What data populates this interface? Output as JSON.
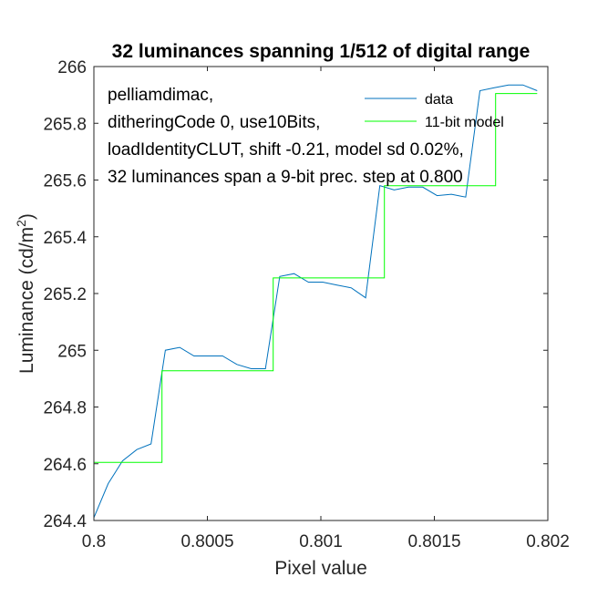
{
  "chart_data": {
    "type": "line",
    "title": "32 luminances spanning 1/512 of digital range",
    "xlabel": "Pixel value",
    "ylabel_main": "Luminance (cd/m",
    "ylabel_sup": "2",
    "ylabel_close": ")",
    "xlim": [
      0.8,
      0.802
    ],
    "ylim": [
      264.4,
      266
    ],
    "xticks": [
      0.8,
      0.8005,
      0.801,
      0.8015,
      0.802
    ],
    "xtick_labels": [
      "0.8",
      "0.8005",
      "0.801",
      "0.8015",
      "0.802"
    ],
    "yticks": [
      264.4,
      264.6,
      264.8,
      265,
      265.2,
      265.4,
      265.6,
      265.8,
      266
    ],
    "ytick_labels": [
      "264.4",
      "264.6",
      "264.8",
      "265",
      "265.2",
      "265.4",
      "265.6",
      "265.8",
      "266"
    ],
    "grid": false,
    "legend_position": "top-right",
    "annotation_lines": [
      "pelliamdimac,",
      "ditheringCode 0, use10Bits,",
      "loadIdentityCLUT, shift -0.21, model sd 0.02%,",
      "32 luminances span a 9-bit prec. step at 0.800"
    ],
    "series": [
      {
        "name": "data",
        "color": "#0072BD",
        "x": [
          0.8,
          0.800063,
          0.800126,
          0.800189,
          0.800252,
          0.800315,
          0.800378,
          0.800441,
          0.800504,
          0.800567,
          0.80063,
          0.800693,
          0.800756,
          0.800819,
          0.800882,
          0.800945,
          0.801008,
          0.801071,
          0.801134,
          0.801197,
          0.80126,
          0.801323,
          0.801386,
          0.801449,
          0.801512,
          0.801575,
          0.801638,
          0.801701,
          0.801764,
          0.801827,
          0.80189,
          0.801953
        ],
        "y": [
          264.41,
          264.53,
          264.61,
          264.65,
          264.67,
          265.0,
          265.01,
          264.98,
          264.98,
          264.98,
          264.95,
          264.935,
          264.935,
          265.26,
          265.27,
          265.24,
          265.24,
          265.23,
          265.22,
          265.185,
          265.58,
          265.565,
          265.575,
          265.575,
          265.545,
          265.55,
          265.54,
          265.915,
          265.925,
          265.935,
          265.935,
          265.915
        ]
      },
      {
        "name": "11-bit model",
        "color": "#00FF00",
        "step_edges": [
          0.8,
          0.8003,
          0.80079,
          0.80128,
          0.80177,
          0.801953
        ],
        "levels": [
          264.605,
          264.928,
          265.255,
          265.58,
          265.905
        ]
      }
    ]
  }
}
